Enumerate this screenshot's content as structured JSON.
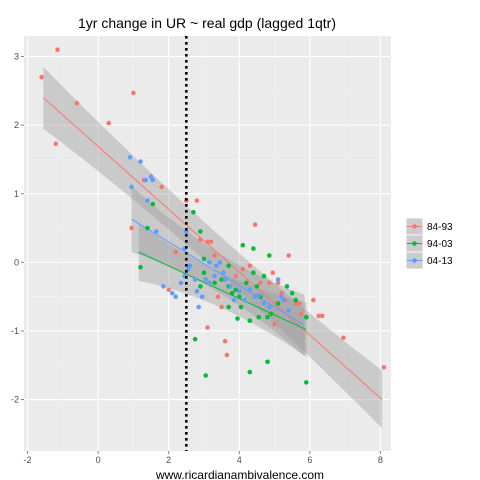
{
  "chart_data": {
    "type": "scatter",
    "title": "1yr change in UR ~ real gdp (lagged 1qtr)",
    "caption": "www.ricardianambivalence.com",
    "xlabel": "",
    "ylabel": "",
    "xlim": [
      -2.1,
      8.3
    ],
    "ylim": [
      -2.75,
      3.3
    ],
    "x_ticks": [
      -2,
      0,
      2,
      4,
      6,
      8
    ],
    "y_ticks": [
      -2,
      -1,
      0,
      1,
      2,
      3
    ],
    "x_tick_labels": [
      "-2",
      "0",
      "2",
      "4",
      "6",
      "8"
    ],
    "y_tick_labels": [
      "-2",
      "-1",
      "0",
      "1",
      "2",
      "3"
    ],
    "vline_x": 2.5,
    "grid": true,
    "legend_position": "right",
    "series": [
      {
        "name": "84-93",
        "color": "#F8766D",
        "fit": {
          "x": [
            -1.55,
            8.05
          ],
          "y": [
            2.4,
            -2.0
          ],
          "band": [
            0.45,
            0.12,
            0.42
          ]
        },
        "points": [
          [
            -1.6,
            2.7
          ],
          [
            -1.15,
            3.1
          ],
          [
            -1.2,
            1.73
          ],
          [
            -0.6,
            2.32
          ],
          [
            0.3,
            2.03
          ],
          [
            1.0,
            2.47
          ],
          [
            0.95,
            0.5
          ],
          [
            1.3,
            1.2
          ],
          [
            1.8,
            1.1
          ],
          [
            2.5,
            0.9
          ],
          [
            2.2,
            0.15
          ],
          [
            2.8,
            0.9
          ],
          [
            3.1,
            0.3
          ],
          [
            3.2,
            0.3
          ],
          [
            3.3,
            0.1
          ],
          [
            2.9,
            0.33
          ],
          [
            3.4,
            -0.5
          ],
          [
            3.5,
            -0.65
          ],
          [
            3.1,
            -0.95
          ],
          [
            3.65,
            -1.35
          ],
          [
            3.6,
            -1.15
          ],
          [
            3.9,
            -0.2
          ],
          [
            4.1,
            -0.1
          ],
          [
            4.3,
            -0.05
          ],
          [
            4.45,
            0.55
          ],
          [
            4.6,
            -0.3
          ],
          [
            4.85,
            -0.3
          ],
          [
            5.1,
            -0.3
          ],
          [
            5.2,
            -0.45
          ],
          [
            5.3,
            -0.55
          ],
          [
            5.4,
            0.1
          ],
          [
            5.6,
            -0.6
          ],
          [
            5.7,
            -0.6
          ],
          [
            5.75,
            -0.75
          ],
          [
            6.1,
            -0.55
          ],
          [
            6.25,
            -0.78
          ],
          [
            6.35,
            -0.78
          ],
          [
            6.95,
            -1.1
          ],
          [
            8.1,
            -1.53
          ],
          [
            2.0,
            -0.4
          ],
          [
            4.95,
            -0.15
          ],
          [
            5.0,
            -0.9
          ]
        ]
      },
      {
        "name": "94-03",
        "color": "#00BA38",
        "fit": {
          "x": [
            1.15,
            5.9
          ],
          "y": [
            0.15,
            -0.98
          ],
          "band": [
            0.42,
            0.1,
            0.4
          ]
        },
        "points": [
          [
            1.2,
            -0.07
          ],
          [
            1.4,
            0.5
          ],
          [
            1.55,
            0.85
          ],
          [
            2.7,
            0.73
          ],
          [
            2.9,
            0.45
          ],
          [
            3.0,
            0.05
          ],
          [
            3.3,
            -0.3
          ],
          [
            3.0,
            -0.15
          ],
          [
            3.5,
            -0.25
          ],
          [
            3.7,
            -0.35
          ],
          [
            3.8,
            -0.45
          ],
          [
            3.9,
            -0.4
          ],
          [
            4.0,
            -0.5
          ],
          [
            4.05,
            -0.65
          ],
          [
            4.1,
            0.25
          ],
          [
            4.2,
            -0.3
          ],
          [
            4.4,
            -0.15
          ],
          [
            4.5,
            -0.35
          ],
          [
            4.6,
            -0.5
          ],
          [
            4.55,
            -0.8
          ],
          [
            4.7,
            -0.2
          ],
          [
            4.8,
            -0.8
          ],
          [
            4.9,
            -0.75
          ],
          [
            5.1,
            -0.6
          ],
          [
            5.35,
            -0.35
          ],
          [
            5.5,
            -0.45
          ],
          [
            5.6,
            -0.55
          ],
          [
            5.9,
            -0.8
          ],
          [
            5.9,
            -1.75
          ],
          [
            4.8,
            -1.45
          ],
          [
            4.3,
            -1.6
          ],
          [
            3.7,
            -0.65
          ],
          [
            3.95,
            -0.82
          ],
          [
            4.3,
            -0.85
          ],
          [
            2.75,
            -1.12
          ],
          [
            3.05,
            -1.65
          ],
          [
            3.7,
            -0.05
          ],
          [
            4.85,
            0.1
          ],
          [
            4.4,
            0.2
          ],
          [
            2.9,
            -0.35
          ]
        ]
      },
      {
        "name": "04-13",
        "color": "#619CFF",
        "fit": {
          "x": [
            0.95,
            5.85
          ],
          "y": [
            0.63,
            -0.92
          ],
          "band": [
            0.48,
            0.11,
            0.45
          ]
        },
        "points": [
          [
            0.9,
            1.53
          ],
          [
            0.95,
            1.1
          ],
          [
            1.2,
            1.47
          ],
          [
            1.35,
            1.2
          ],
          [
            1.5,
            1.25
          ],
          [
            1.55,
            1.2
          ],
          [
            1.4,
            0.9
          ],
          [
            1.85,
            -0.35
          ],
          [
            2.1,
            -0.45
          ],
          [
            2.2,
            -0.5
          ],
          [
            2.35,
            -0.3
          ],
          [
            2.45,
            -0.2
          ],
          [
            2.55,
            -0.1
          ],
          [
            2.6,
            -0.05
          ],
          [
            2.75,
            -0.25
          ],
          [
            2.8,
            -0.42
          ],
          [
            2.95,
            -0.5
          ],
          [
            3.05,
            -0.25
          ],
          [
            3.15,
            -0.3
          ],
          [
            3.3,
            -0.2
          ],
          [
            3.35,
            -0.05
          ],
          [
            3.45,
            0.0
          ],
          [
            3.55,
            -0.15
          ],
          [
            3.6,
            -0.25
          ],
          [
            3.75,
            -0.35
          ],
          [
            3.85,
            -0.55
          ],
          [
            4.0,
            -0.42
          ],
          [
            4.15,
            -0.55
          ],
          [
            4.3,
            -0.4
          ],
          [
            4.45,
            -0.5
          ],
          [
            4.55,
            -0.48
          ],
          [
            4.7,
            -0.6
          ],
          [
            4.85,
            -0.65
          ],
          [
            5.1,
            -0.25
          ],
          [
            5.2,
            -0.5
          ],
          [
            5.25,
            -0.55
          ],
          [
            5.4,
            -0.7
          ],
          [
            2.45,
            0.2
          ],
          [
            2.5,
            0.45
          ],
          [
            3.15,
            0.0
          ],
          [
            2.85,
            -0.65
          ],
          [
            1.65,
            0.45
          ]
        ]
      }
    ]
  }
}
